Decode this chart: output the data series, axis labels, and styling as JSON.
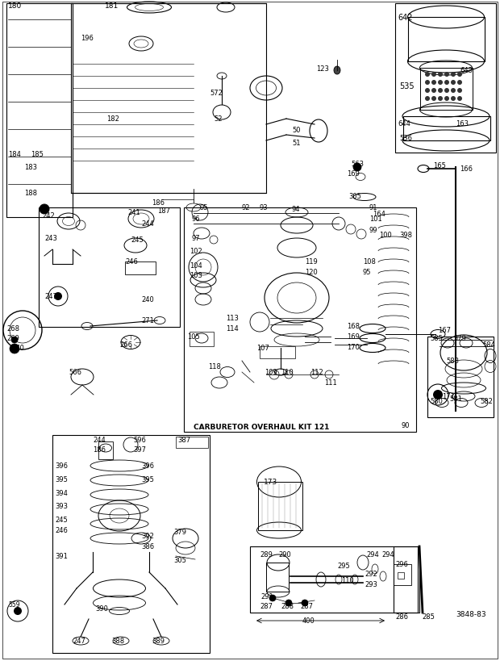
{
  "bg_color": "#ffffff",
  "fig_width": 6.2,
  "fig_height": 8.2,
  "dpi": 100,
  "xlim": [
    0,
    620
  ],
  "ylim": [
    0,
    820
  ]
}
